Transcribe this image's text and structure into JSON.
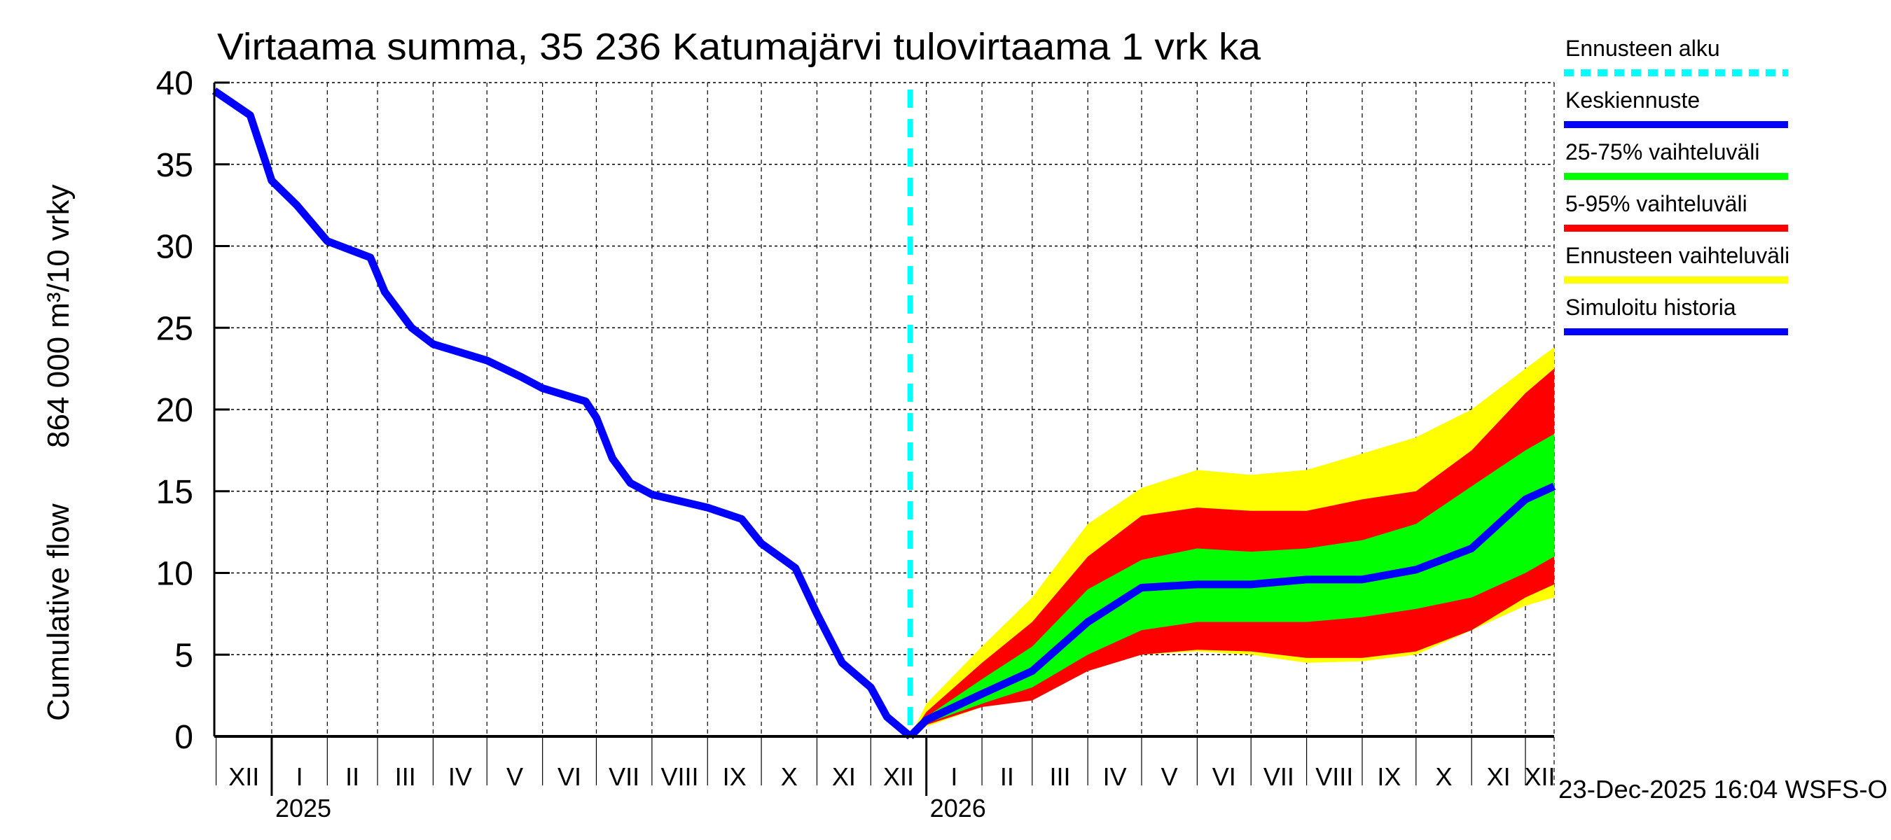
{
  "chart_data": {
    "type": "area",
    "title": "Virtaama summa, 35 236 Katumajärvi tulovirtaama 1 vrk ka",
    "ylabel_left": "Cumulative flow",
    "ylabel_right": "864 000 m³/10 vrky",
    "ylim": [
      0,
      40
    ],
    "yticks": [
      "0",
      "5",
      "10",
      "15",
      "20",
      "25",
      "30",
      "35",
      "40"
    ],
    "xlim": [
      "2024-11-30",
      "2026-12-17"
    ],
    "grid": true,
    "legend_placement": "right",
    "month_labels": [
      {
        "label": "XII",
        "date": "2024-12-01"
      },
      {
        "label": "I",
        "date": "2025-01-01"
      },
      {
        "label": "II",
        "date": "2025-02-01"
      },
      {
        "label": "III",
        "date": "2025-03-01"
      },
      {
        "label": "IV",
        "date": "2025-04-01"
      },
      {
        "label": "V",
        "date": "2025-05-01"
      },
      {
        "label": "VI",
        "date": "2025-06-01"
      },
      {
        "label": "VII",
        "date": "2025-07-01"
      },
      {
        "label": "VIII",
        "date": "2025-08-01"
      },
      {
        "label": "IX",
        "date": "2025-09-01"
      },
      {
        "label": "X",
        "date": "2025-10-01"
      },
      {
        "label": "XI",
        "date": "2025-11-01"
      },
      {
        "label": "XII",
        "date": "2025-12-01"
      },
      {
        "label": "I",
        "date": "2026-01-01"
      },
      {
        "label": "II",
        "date": "2026-02-01"
      },
      {
        "label": "III",
        "date": "2026-03-01"
      },
      {
        "label": "IV",
        "date": "2026-04-01"
      },
      {
        "label": "V",
        "date": "2026-05-01"
      },
      {
        "label": "VI",
        "date": "2026-06-01"
      },
      {
        "label": "VII",
        "date": "2026-07-01"
      },
      {
        "label": "VIII",
        "date": "2026-08-01"
      },
      {
        "label": "IX",
        "date": "2026-09-01"
      },
      {
        "label": "X",
        "date": "2026-10-01"
      },
      {
        "label": "XI",
        "date": "2026-11-01"
      },
      {
        "label": "XII",
        "date": "2026-12-01"
      }
    ],
    "year_labels": [
      {
        "label": "2025",
        "date": "2025-01-01"
      },
      {
        "label": "2026",
        "date": "2026-01-01"
      }
    ],
    "forecast_start": "2025-12-23",
    "colors": {
      "forecast_start": "#00ffff",
      "median": "#0000ff",
      "p25_75": "#00ff00",
      "p5_95": "#ff0000",
      "range": "#ffff00",
      "history": "#0000ff"
    },
    "legend": [
      {
        "label": "Ennusteen alku",
        "key": "forecast_start",
        "dashed": true
      },
      {
        "label": "Keskiennuste",
        "key": "median"
      },
      {
        "label": "25-75% vaihteluväli",
        "key": "p25_75"
      },
      {
        "label": "5-95% vaihteluväli",
        "key": "p5_95"
      },
      {
        "label": "Ennusteen vaihteluväli",
        "key": "range"
      },
      {
        "label": "Simuloitu historia",
        "key": "history"
      }
    ],
    "history": {
      "x": [
        "2024-11-30",
        "2024-12-20",
        "2025-01-01",
        "2025-01-15",
        "2025-02-01",
        "2025-02-25",
        "2025-03-05",
        "2025-03-20",
        "2025-04-01",
        "2025-05-01",
        "2025-05-20",
        "2025-06-01",
        "2025-06-25",
        "2025-07-01",
        "2025-07-10",
        "2025-07-20",
        "2025-08-01",
        "2025-09-01",
        "2025-09-20",
        "2025-10-01",
        "2025-10-20",
        "2025-11-01",
        "2025-11-15",
        "2025-12-01",
        "2025-12-10",
        "2025-12-23"
      ],
      "y": [
        39.5,
        38,
        34,
        32.5,
        30.3,
        29.3,
        27.2,
        25,
        24,
        23,
        22,
        21.3,
        20.5,
        19.5,
        17,
        15.5,
        14.8,
        14,
        13.3,
        11.8,
        10.3,
        7.5,
        4.5,
        3,
        1.2,
        0
      ]
    },
    "forecast": {
      "x": [
        "2025-12-23",
        "2026-01-01",
        "2026-02-01",
        "2026-03-01",
        "2026-04-01",
        "2026-05-01",
        "2026-06-01",
        "2026-07-01",
        "2026-08-01",
        "2026-09-01",
        "2026-10-01",
        "2026-11-01",
        "2026-12-01",
        "2026-12-17"
      ],
      "median": [
        0,
        1,
        2.6,
        4,
        7,
        9.1,
        9.3,
        9.3,
        9.6,
        9.6,
        10.2,
        11.5,
        14.5,
        15.3
      ],
      "p25": [
        0,
        0.8,
        2,
        3,
        5,
        6.5,
        7,
        7,
        7,
        7.3,
        7.8,
        8.5,
        10,
        11
      ],
      "p75": [
        0,
        1.2,
        3.5,
        5.5,
        9,
        10.8,
        11.5,
        11.3,
        11.5,
        12,
        13,
        15.3,
        17.5,
        18.5
      ],
      "p5": [
        0,
        0.7,
        1.8,
        2.2,
        4,
        5,
        5.3,
        5.2,
        4.8,
        4.8,
        5.2,
        6.5,
        8.5,
        9.3
      ],
      "p95": [
        0,
        1.5,
        4.5,
        7,
        11,
        13.5,
        14,
        13.8,
        13.8,
        14.5,
        15,
        17.5,
        21,
        22.5
      ],
      "min": [
        0,
        0.6,
        1.8,
        2.2,
        4,
        5,
        5.2,
        5,
        4.5,
        4.6,
        5,
        6.5,
        8,
        8.5
      ],
      "max": [
        0,
        2,
        5.5,
        8.5,
        13,
        15.2,
        16.3,
        16,
        16.3,
        17.3,
        18.3,
        20,
        22.5,
        23.8
      ]
    }
  },
  "footer": {
    "timestamp": "23-Dec-2025 16:04 WSFS-O"
  }
}
